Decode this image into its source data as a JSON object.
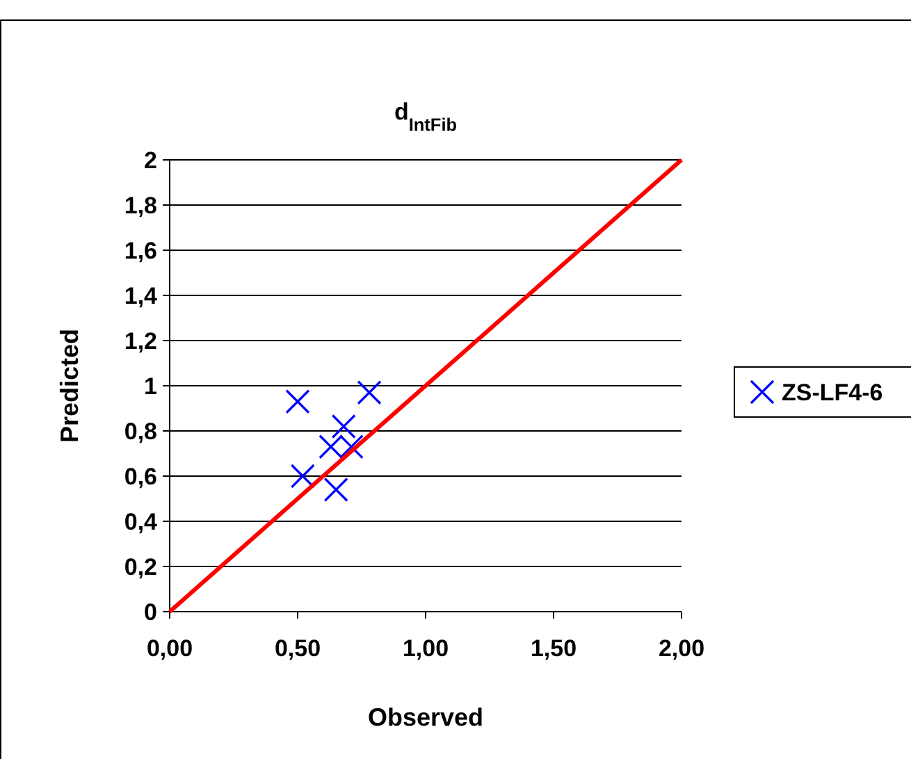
{
  "chart_data": {
    "type": "scatter",
    "title": "d$_{IntFib}$",
    "xlabel": "Observed",
    "ylabel": "Predicted",
    "xlim": [
      0,
      2
    ],
    "ylim": [
      0,
      2
    ],
    "xticks": [
      {
        "value": 0,
        "label": "0,00"
      },
      {
        "value": 0.5,
        "label": "0,50"
      },
      {
        "value": 1,
        "label": "1,00"
      },
      {
        "value": 1.5,
        "label": "1,50"
      },
      {
        "value": 2,
        "label": "2,00"
      }
    ],
    "yticks": [
      0,
      {
        "value": 0.2,
        "label": "0,2"
      },
      {
        "value": 0.4,
        "label": "0,4"
      },
      {
        "value": 0.6,
        "label": "0,6"
      },
      {
        "value": 0.8,
        "label": "0,8"
      },
      1,
      {
        "value": 1.2,
        "label": "1,2"
      },
      {
        "value": 1.4,
        "label": "1,4"
      },
      {
        "value": 1.6,
        "label": "1,6"
      },
      {
        "value": 1.8,
        "label": "1,8"
      },
      2
    ],
    "grid": "y",
    "legend": "right",
    "marker": "cross",
    "series": [
      {
        "name": "ZS-LF4-6",
        "color": "#0000ff",
        "x": [
          0.5,
          0.78,
          0.68,
          0.63,
          0.71,
          0.52,
          0.65
        ],
        "values": [
          0.93,
          0.97,
          0.82,
          0.73,
          0.73,
          0.6,
          0.54
        ]
      },
      {
        "type": "line",
        "color": "#ff0000",
        "x": [
          0,
          2
        ],
        "values": [
          0,
          2
        ],
        "marker": "none"
      }
    ]
  }
}
